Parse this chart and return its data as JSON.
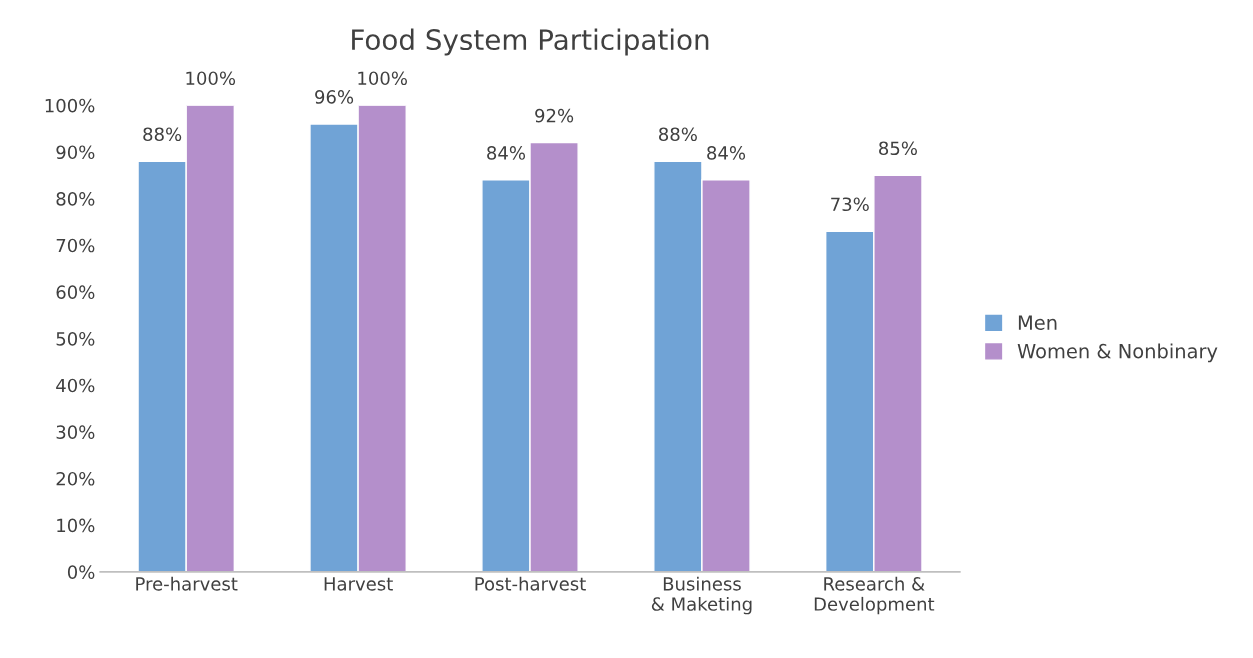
{
  "chart_data": {
    "type": "bar",
    "title": "Food System Participation",
    "categories": [
      "Pre-harvest",
      "Harvest",
      "Post-harvest",
      "Business & Maketing",
      "Research & Development"
    ],
    "series": [
      {
        "name": "Men",
        "color": "#70a3d6",
        "values": [
          88,
          96,
          84,
          88,
          73
        ],
        "value_labels": [
          "88%",
          "96%",
          "84%",
          "88%",
          "73%"
        ]
      },
      {
        "name": "Women & Nonbinary",
        "color": "#b48fcb",
        "values": [
          100,
          100,
          92,
          84,
          85
        ],
        "value_labels": [
          "100%",
          "100%",
          "92%",
          "84%",
          "85%"
        ]
      }
    ],
    "ylim": [
      0,
      100
    ],
    "yticks": [
      {
        "value": 0,
        "label": "0%"
      },
      {
        "value": 10,
        "label": "10%"
      },
      {
        "value": 20,
        "label": "20%"
      },
      {
        "value": 30,
        "label": "30%"
      },
      {
        "value": 40,
        "label": "40%"
      },
      {
        "value": 50,
        "label": "50%"
      },
      {
        "value": 60,
        "label": "60%"
      },
      {
        "value": 70,
        "label": "70%"
      },
      {
        "value": 80,
        "label": "80%"
      },
      {
        "value": 90,
        "label": "90%"
      },
      {
        "value": 100,
        "label": "100%"
      }
    ],
    "grid": false,
    "legend": "right"
  }
}
